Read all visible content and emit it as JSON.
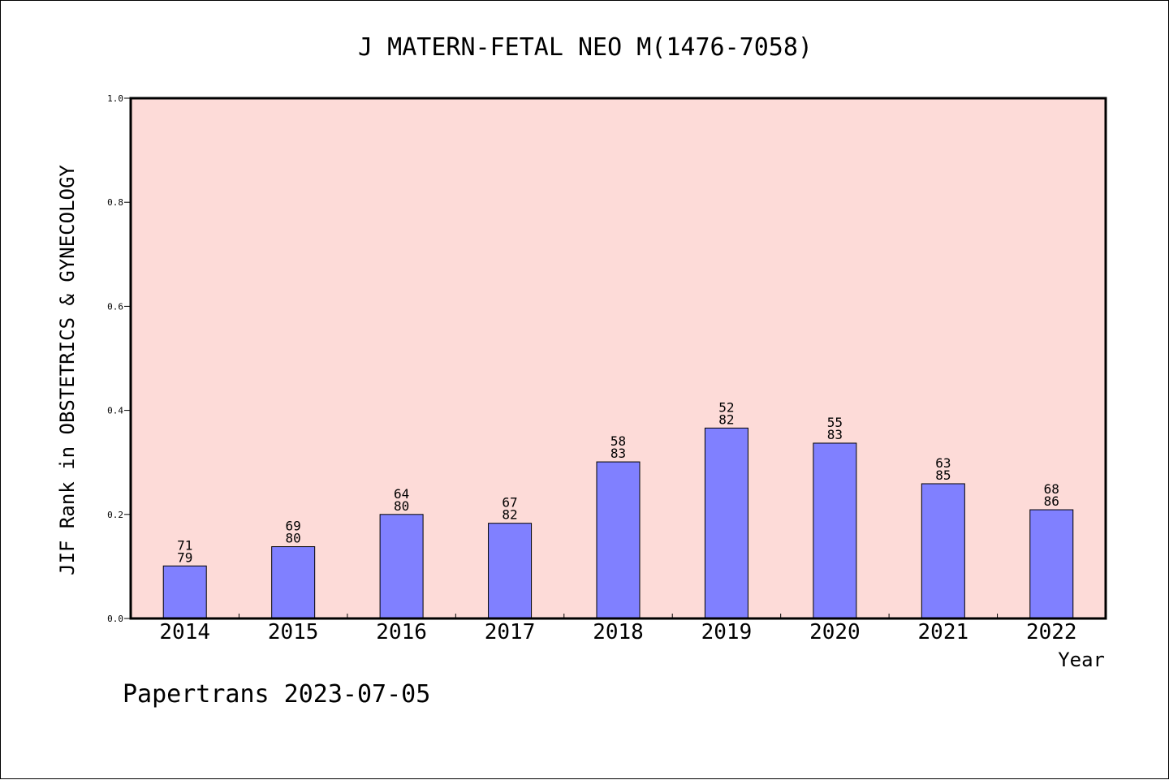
{
  "chart_data": {
    "type": "bar",
    "title": "J MATERN-FETAL NEO M(1476-7058)",
    "xlabel": "Year",
    "ylabel": "JIF Rank in OBSTETRICS & GYNECOLOGY",
    "ylim": [
      0,
      1.0
    ],
    "yticks": [
      "0.0",
      "0.2",
      "0.4",
      "0.6",
      "0.8",
      "1.0"
    ],
    "categories": [
      "2014",
      "2015",
      "2016",
      "2017",
      "2018",
      "2019",
      "2020",
      "2021",
      "2022"
    ],
    "values": [
      0.101,
      0.138,
      0.2,
      0.183,
      0.301,
      0.366,
      0.337,
      0.259,
      0.209
    ],
    "rank_labels": [
      "71",
      "69",
      "64",
      "67",
      "58",
      "52",
      "55",
      "63",
      "68"
    ],
    "total_labels": [
      "79",
      "80",
      "80",
      "82",
      "83",
      "82",
      "83",
      "85",
      "86"
    ],
    "colors": {
      "bar": "#8080ff",
      "plot_background": "#fddbd8",
      "axis": "#000000"
    },
    "grid": false
  },
  "footer": "Papertrans 2023-07-05"
}
